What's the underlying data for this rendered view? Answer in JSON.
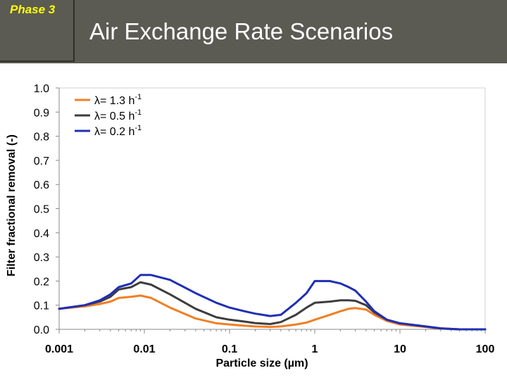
{
  "header": {
    "phase_label": "Phase 3",
    "title": "Air Exchange Rate Scenarios"
  },
  "chart_data": {
    "type": "line",
    "xlabel": "Particle size (µm)",
    "ylabel": "Filter fractional removal (-)",
    "x_scale": "log",
    "xlim": [
      0.001,
      100
    ],
    "ylim": [
      0.0,
      1.0
    ],
    "x_ticks": [
      0.001,
      0.01,
      0.1,
      1,
      10,
      100
    ],
    "x_tick_labels": [
      "0.001",
      "0.01",
      "0.1",
      "1",
      "10",
      "100"
    ],
    "y_ticks": [
      0.0,
      0.1,
      0.2,
      0.3,
      0.4,
      0.5,
      0.6,
      0.7,
      0.8,
      0.9,
      1.0
    ],
    "y_tick_labels": [
      "0.0",
      "0.1",
      "0.2",
      "0.3",
      "0.4",
      "0.5",
      "0.6",
      "0.7",
      "0.8",
      "0.9",
      "1.0"
    ],
    "grid": false,
    "legend_position": "top-left",
    "series": [
      {
        "name": "λ= 1.3 h",
        "superscript": "-1",
        "color": "#f07f24",
        "x": [
          0.001,
          0.002,
          0.003,
          0.004,
          0.005,
          0.007,
          0.009,
          0.012,
          0.02,
          0.04,
          0.07,
          0.1,
          0.15,
          0.2,
          0.3,
          0.4,
          0.6,
          0.8,
          1.0,
          1.5,
          2.0,
          2.5,
          3.0,
          4.0,
          5.0,
          7.0,
          10,
          20,
          30,
          50,
          100
        ],
        "y": [
          0.085,
          0.095,
          0.105,
          0.115,
          0.13,
          0.135,
          0.14,
          0.13,
          0.09,
          0.045,
          0.025,
          0.02,
          0.015,
          0.012,
          0.01,
          0.012,
          0.02,
          0.028,
          0.04,
          0.06,
          0.075,
          0.085,
          0.088,
          0.082,
          0.06,
          0.035,
          0.02,
          0.01,
          0.003,
          0.0,
          0.0
        ]
      },
      {
        "name": "λ= 0.5 h",
        "superscript": "-1",
        "color": "#3d3d3d",
        "x": [
          0.001,
          0.002,
          0.003,
          0.004,
          0.005,
          0.007,
          0.009,
          0.012,
          0.02,
          0.04,
          0.07,
          0.1,
          0.15,
          0.2,
          0.3,
          0.4,
          0.6,
          0.8,
          1.0,
          1.5,
          2.0,
          2.5,
          3.0,
          4.0,
          5.0,
          7.0,
          10,
          20,
          30,
          50,
          100
        ],
        "y": [
          0.085,
          0.1,
          0.115,
          0.135,
          0.165,
          0.175,
          0.195,
          0.185,
          0.145,
          0.085,
          0.05,
          0.04,
          0.032,
          0.026,
          0.022,
          0.03,
          0.06,
          0.09,
          0.11,
          0.115,
          0.12,
          0.12,
          0.118,
          0.1,
          0.07,
          0.04,
          0.025,
          0.012,
          0.004,
          0.0,
          0.0
        ]
      },
      {
        "name": "λ= 0.2 h",
        "superscript": "-1",
        "color": "#1f2fb4",
        "x": [
          0.001,
          0.002,
          0.003,
          0.004,
          0.005,
          0.007,
          0.009,
          0.012,
          0.02,
          0.04,
          0.07,
          0.1,
          0.15,
          0.2,
          0.3,
          0.4,
          0.6,
          0.8,
          1.0,
          1.5,
          2.0,
          2.5,
          3.0,
          4.0,
          5.0,
          7.0,
          10,
          20,
          30,
          50,
          100
        ],
        "y": [
          0.085,
          0.1,
          0.12,
          0.145,
          0.175,
          0.19,
          0.225,
          0.225,
          0.205,
          0.15,
          0.11,
          0.09,
          0.075,
          0.065,
          0.055,
          0.06,
          0.11,
          0.15,
          0.2,
          0.2,
          0.19,
          0.175,
          0.16,
          0.115,
          0.075,
          0.04,
          0.025,
          0.012,
          0.004,
          0.0,
          0.0
        ]
      }
    ]
  }
}
